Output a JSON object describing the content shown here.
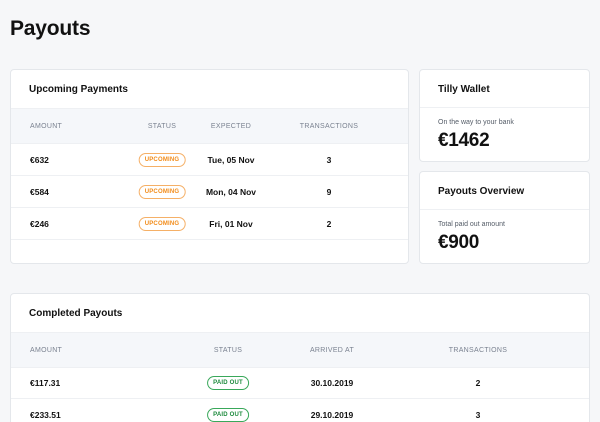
{
  "page_title": "Payouts",
  "upcoming": {
    "title": "Upcoming Payments",
    "headers": {
      "amount": "AMOUNT",
      "status": "STATUS",
      "expected": "EXPECTED",
      "transactions": "TRANSACTIONS"
    },
    "rows": [
      {
        "amount": "€632",
        "status": "UPCOMING",
        "expected": "Tue, 05 Nov",
        "transactions": "3"
      },
      {
        "amount": "€584",
        "status": "UPCOMING",
        "expected": "Mon, 04 Nov",
        "transactions": "9"
      },
      {
        "amount": "€246",
        "status": "UPCOMING",
        "expected": "Fri, 01 Nov",
        "transactions": "2"
      }
    ]
  },
  "wallet": {
    "title": "Tilly Wallet",
    "label": "On the way to your bank",
    "value": "€1462"
  },
  "overview": {
    "title": "Payouts Overview",
    "label": "Total paid out amount",
    "value": "€900"
  },
  "completed": {
    "title": "Completed Payouts",
    "headers": {
      "amount": "AMOUNT",
      "status": "STATUS",
      "arrived": "ARRIVED AT",
      "transactions": "TRANSACTIONS"
    },
    "rows": [
      {
        "amount": "€117.31",
        "status": "PAID OUT",
        "arrived": "30.10.2019",
        "transactions": "2"
      },
      {
        "amount": "€233.51",
        "status": "PAID OUT",
        "arrived": "29.10.2019",
        "transactions": "3"
      }
    ]
  },
  "colors": {
    "background": "#f6f7f9",
    "upcoming_badge": "#f28c1a",
    "paid_badge": "#1c8a3c"
  }
}
